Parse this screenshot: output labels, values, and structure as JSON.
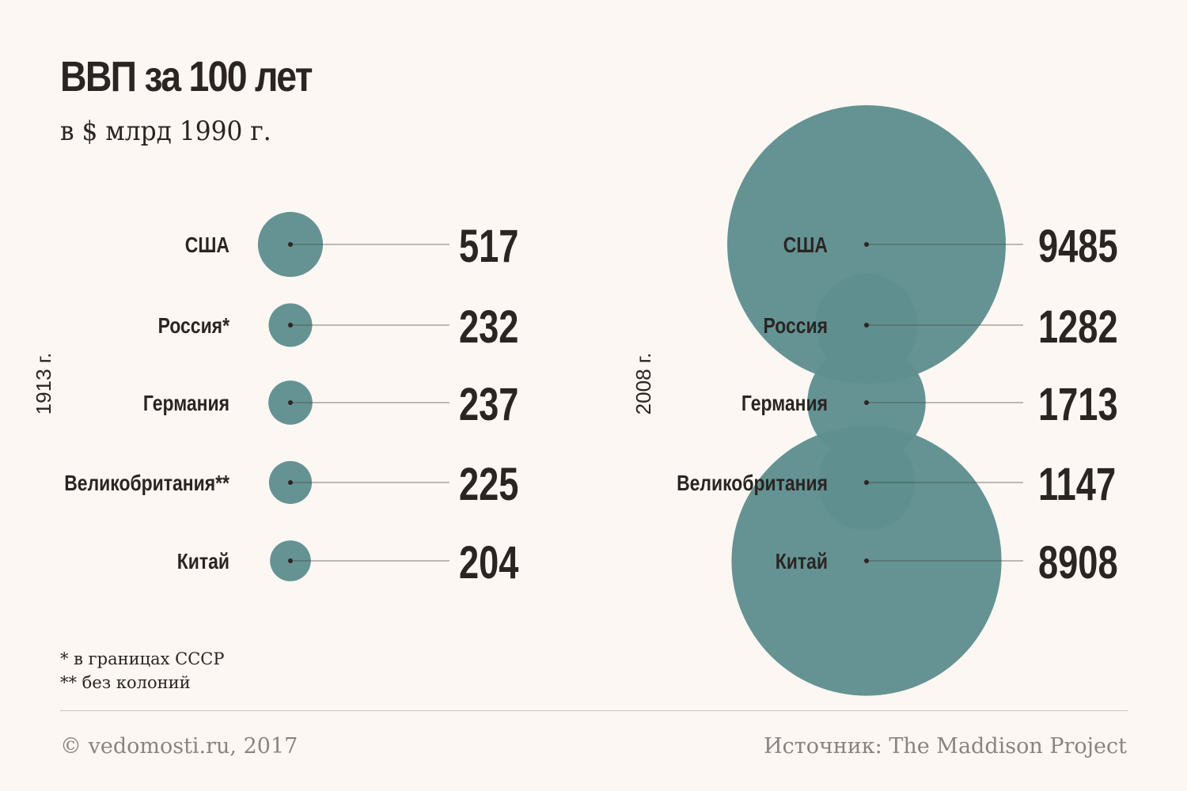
{
  "title": "ВВП за 100 лет",
  "subtitle": "в $ млрд 1990 г.",
  "chart_data": [
    {
      "type": "bubble",
      "panel_label": "1913 г.",
      "categories": [
        "США",
        "Россия*",
        "Германия",
        "Великобритания**",
        "Китай"
      ],
      "values": [
        517,
        232,
        237,
        225,
        204
      ]
    },
    {
      "type": "bubble",
      "panel_label": "2008 г.",
      "categories": [
        "США",
        "Россия",
        "Германия",
        "Великобритания",
        "Китай"
      ],
      "values": [
        9485,
        1282,
        1713,
        1147,
        8908
      ]
    }
  ],
  "footnotes": [
    "* в границах СССР",
    "** без колоний"
  ],
  "credit": "© vedomosti.ru, 2017",
  "source": "Источник: The Maddison Project",
  "colors": {
    "bubble": "#5f8f8f",
    "dark": "#2a2523",
    "background": "#fcf7f2"
  }
}
